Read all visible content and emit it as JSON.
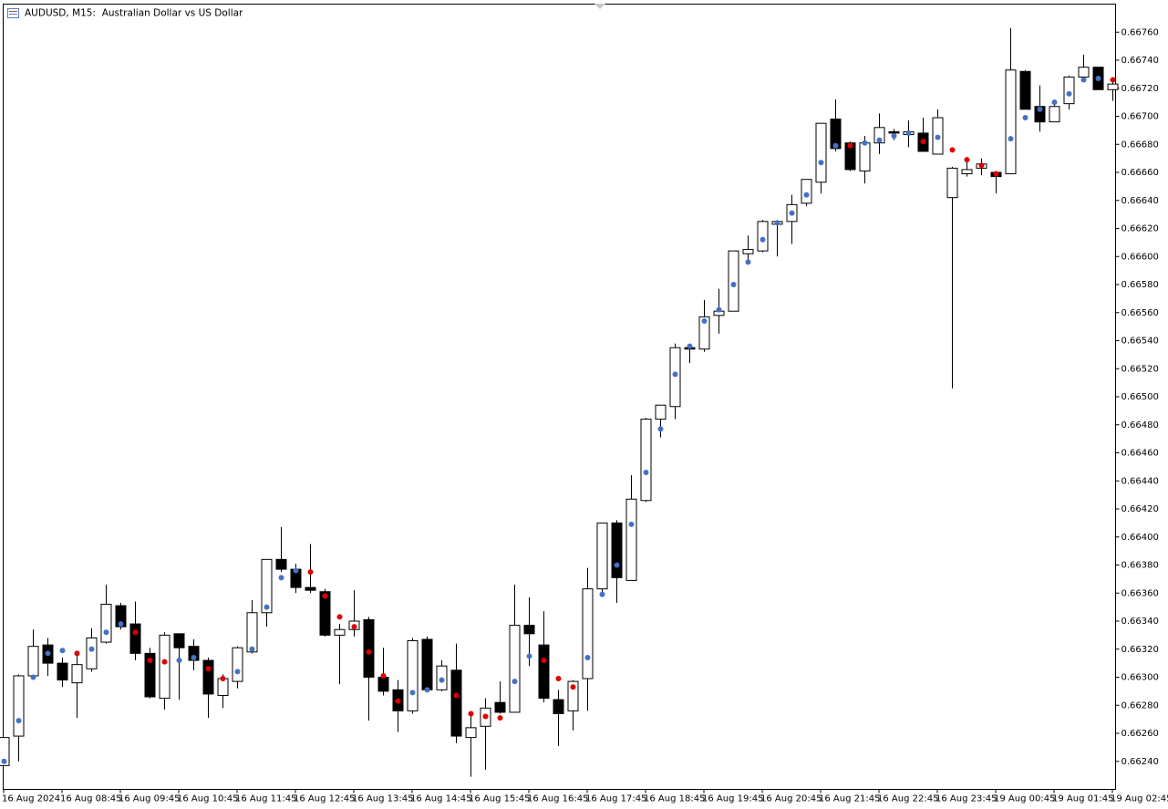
{
  "chart_data": {
    "type": "candlestick",
    "title": "AUDUSD, M15:  Australian Dollar vs US Dollar",
    "categories": [
      "16 Aug 2024",
      null,
      null,
      null,
      "16 Aug 08:45",
      null,
      null,
      null,
      "16 Aug 09:45",
      null,
      null,
      null,
      "16 Aug 10:45",
      null,
      null,
      null,
      "16 Aug 11:45",
      null,
      null,
      null,
      "16 Aug 12:45",
      null,
      null,
      null,
      "16 Aug 13:45",
      null,
      null,
      null,
      "16 Aug 14:45",
      null,
      null,
      null,
      "16 Aug 15:45",
      null,
      null,
      null,
      "16 Aug 16:45",
      null,
      null,
      null,
      "16 Aug 17:45",
      null,
      null,
      null,
      "16 Aug 18:45",
      null,
      null,
      null,
      "16 Aug 19:45",
      null,
      null,
      null,
      "16 Aug 20:45",
      null,
      null,
      null,
      "16 Aug 21:45",
      null,
      null,
      null,
      "16 Aug 22:45",
      null,
      null,
      null,
      "16 Aug 23:45",
      null,
      null,
      null,
      "19 Aug 00:45",
      null,
      null,
      null,
      "19 Aug 01:45",
      null,
      null,
      null,
      "19 Aug 02:45"
    ],
    "open": [
      0.66237,
      0.66258,
      0.66301,
      0.66323,
      0.6631,
      0.66296,
      0.66306,
      0.66325,
      0.66351,
      0.66338,
      0.66317,
      0.66285,
      0.66331,
      0.66322,
      0.66312,
      0.66287,
      0.66297,
      0.66318,
      0.66346,
      0.66384,
      0.66377,
      0.66364,
      0.66361,
      0.6633,
      0.66334,
      0.66341,
      0.663,
      0.66291,
      0.66276,
      0.66327,
      0.66291,
      0.66305,
      0.66257,
      0.66265,
      0.66282,
      0.66275,
      0.66337,
      0.66323,
      0.66284,
      0.66276,
      0.66299,
      0.66363,
      0.6641,
      0.66369,
      0.66426,
      0.66484,
      0.66493,
      0.66535,
      0.66534,
      0.66558,
      0.66561,
      0.66602,
      0.66604,
      0.66623,
      0.66625,
      0.66638,
      0.66653,
      0.66698,
      0.66681,
      0.66661,
      0.66681,
      0.66689,
      0.66687,
      0.66688,
      0.66673,
      0.66642,
      0.66659,
      0.66663,
      0.6666,
      0.66659,
      0.66732,
      0.66707,
      0.66696,
      0.66709,
      0.66728,
      0.66735,
      0.66719
    ],
    "high": [
      0.66257,
      0.66302,
      0.66334,
      0.66328,
      0.66314,
      0.66315,
      0.66335,
      0.66366,
      0.66353,
      0.66354,
      0.66321,
      0.66332,
      0.66331,
      0.66327,
      0.66314,
      0.66302,
      0.66322,
      0.66355,
      0.66384,
      0.66407,
      0.66381,
      0.66395,
      0.66363,
      0.66338,
      0.66362,
      0.66343,
      0.66321,
      0.66298,
      0.66328,
      0.66329,
      0.66312,
      0.66324,
      0.66273,
      0.66285,
      0.66297,
      0.66366,
      0.66357,
      0.66347,
      0.66291,
      0.66298,
      0.66378,
      0.6641,
      0.66412,
      0.66444,
      0.66485,
      0.66494,
      0.66538,
      0.66538,
      0.66569,
      0.66577,
      0.66604,
      0.66615,
      0.66626,
      0.66626,
      0.66644,
      0.66655,
      0.66695,
      0.66712,
      0.66682,
      0.66686,
      0.66702,
      0.66691,
      0.66697,
      0.66699,
      0.66705,
      0.66664,
      0.66669,
      0.6667,
      0.66661,
      0.66763,
      0.66733,
      0.66722,
      0.66712,
      0.66729,
      0.66744,
      0.66735,
      0.66727
    ],
    "low": [
      0.66237,
      0.6624,
      0.663,
      0.66301,
      0.66293,
      0.66271,
      0.66304,
      0.66324,
      0.66334,
      0.66312,
      0.66285,
      0.66277,
      0.66284,
      0.66305,
      0.66271,
      0.66278,
      0.66292,
      0.66317,
      0.66336,
      0.66375,
      0.6636,
      0.6636,
      0.66329,
      0.66295,
      0.66329,
      0.66269,
      0.66287,
      0.66261,
      0.66274,
      0.6629,
      0.6629,
      0.66253,
      0.66229,
      0.66234,
      0.66274,
      0.66275,
      0.66308,
      0.66282,
      0.66251,
      0.66262,
      0.66276,
      0.6636,
      0.66353,
      0.66369,
      0.66425,
      0.66471,
      0.66484,
      0.66524,
      0.66532,
      0.66545,
      0.66561,
      0.66595,
      0.66603,
      0.666,
      0.66609,
      0.66636,
      0.66645,
      0.66675,
      0.66661,
      0.66652,
      0.66673,
      0.66683,
      0.66678,
      0.66675,
      0.66673,
      0.66506,
      0.66657,
      0.66658,
      0.66645,
      0.66659,
      0.66705,
      0.66689,
      0.66696,
      0.66705,
      0.66728,
      0.66719,
      0.66711
    ],
    "close": [
      0.66257,
      0.66301,
      0.66322,
      0.6631,
      0.66298,
      0.66309,
      0.66328,
      0.66352,
      0.66336,
      0.66317,
      0.66286,
      0.6633,
      0.66321,
      0.66312,
      0.66288,
      0.66299,
      0.66321,
      0.66346,
      0.66384,
      0.66377,
      0.66364,
      0.66362,
      0.6633,
      0.66334,
      0.6634,
      0.663,
      0.6629,
      0.66276,
      0.66326,
      0.66291,
      0.66308,
      0.66258,
      0.66264,
      0.66278,
      0.66275,
      0.66337,
      0.66331,
      0.66285,
      0.66274,
      0.66297,
      0.66363,
      0.6641,
      0.66371,
      0.66427,
      0.66484,
      0.66494,
      0.66535,
      0.66534,
      0.66557,
      0.66561,
      0.66604,
      0.66605,
      0.66625,
      0.66625,
      0.66637,
      0.66655,
      0.66695,
      0.66677,
      0.66662,
      0.66681,
      0.66692,
      0.66688,
      0.66689,
      0.66675,
      0.66699,
      0.66663,
      0.66662,
      0.66666,
      0.66657,
      0.66733,
      0.66705,
      0.66696,
      0.66707,
      0.66728,
      0.66735,
      0.66719,
      0.66723
    ],
    "indicator": {
      "values": [
        0.6624,
        0.66269,
        0.663,
        0.66317,
        0.66319,
        0.66317,
        0.6632,
        0.66332,
        0.66338,
        0.66332,
        0.66312,
        0.66311,
        0.66312,
        0.66314,
        0.66306,
        0.66299,
        0.66304,
        0.6632,
        0.6635,
        0.66371,
        0.66376,
        0.66375,
        0.66358,
        0.66343,
        0.66336,
        0.66318,
        0.66301,
        0.66283,
        0.66289,
        0.66291,
        0.66298,
        0.66287,
        0.66274,
        0.66272,
        0.66271,
        0.66297,
        0.66315,
        0.66312,
        0.66299,
        0.66293,
        0.66314,
        0.66359,
        0.6638,
        0.66409,
        0.66446,
        0.66477,
        0.66516,
        0.66536,
        0.66554,
        0.66562,
        0.6658,
        0.66596,
        0.66612,
        0.66624,
        0.66631,
        0.66644,
        0.66667,
        0.66679,
        0.66679,
        0.66681,
        0.66683,
        0.66686,
        0.66688,
        0.66682,
        0.66685,
        0.66676,
        0.66669,
        0.66665,
        0.66659,
        0.66684,
        0.66699,
        0.66705,
        0.6671,
        0.66716,
        0.66726,
        0.66727,
        0.66726
      ],
      "colors": [
        "#4472c4",
        "#4472c4",
        "#4472c4",
        "#4472c4",
        "#4472c4",
        "#e00000",
        "#4472c4",
        "#4472c4",
        "#4472c4",
        "#e00000",
        "#e00000",
        "#e00000",
        "#4472c4",
        "#4472c4",
        "#e00000",
        "#e00000",
        "#4472c4",
        "#4472c4",
        "#4472c4",
        "#4472c4",
        "#4472c4",
        "#e00000",
        "#e00000",
        "#e00000",
        "#e00000",
        "#e00000",
        "#e00000",
        "#e00000",
        "#4472c4",
        "#4472c4",
        "#4472c4",
        "#e00000",
        "#e00000",
        "#e00000",
        "#e00000",
        "#4472c4",
        "#4472c4",
        "#e00000",
        "#e00000",
        "#e00000",
        "#4472c4",
        "#4472c4",
        "#4472c4",
        "#4472c4",
        "#4472c4",
        "#4472c4",
        "#4472c4",
        "#4472c4",
        "#4472c4",
        "#4472c4",
        "#4472c4",
        "#4472c4",
        "#4472c4",
        "#4472c4",
        "#4472c4",
        "#4472c4",
        "#4472c4",
        "#4472c4",
        "#e00000",
        "#4472c4",
        "#4472c4",
        "#4472c4",
        "#4472c4",
        "#e00000",
        "#4472c4",
        "#e00000",
        "#e00000",
        "#e00000",
        "#e00000",
        "#4472c4",
        "#4472c4",
        "#4472c4",
        "#4472c4",
        "#4472c4",
        "#4472c4",
        "#4472c4",
        "#e00000"
      ]
    },
    "bull_color": "#ffffff",
    "bear_color": "#000000",
    "ylim": [
      0.6622,
      0.6678
    ],
    "yticks": [
      {
        "value": 0.6624,
        "label": "0.66240"
      },
      {
        "value": 0.6626,
        "label": "0.66260"
      },
      {
        "value": 0.6628,
        "label": "0.66280"
      },
      {
        "value": 0.663,
        "label": "0.66300"
      },
      {
        "value": 0.6632,
        "label": "0.66320"
      },
      {
        "value": 0.6634,
        "label": "0.66340"
      },
      {
        "value": 0.6636,
        "label": "0.66360"
      },
      {
        "value": 0.6638,
        "label": "0.66380"
      },
      {
        "value": 0.664,
        "label": "0.66400"
      },
      {
        "value": 0.6642,
        "label": "0.66420"
      },
      {
        "value": 0.6644,
        "label": "0.66440"
      },
      {
        "value": 0.6646,
        "label": "0.66460"
      },
      {
        "value": 0.6648,
        "label": "0.66480"
      },
      {
        "value": 0.665,
        "label": "0.66500"
      },
      {
        "value": 0.6652,
        "label": "0.66520"
      },
      {
        "value": 0.6654,
        "label": "0.66540"
      },
      {
        "value": 0.6656,
        "label": "0.66560"
      },
      {
        "value": 0.6658,
        "label": "0.66580"
      },
      {
        "value": 0.666,
        "label": "0.66600"
      },
      {
        "value": 0.6662,
        "label": "0.66620"
      },
      {
        "value": 0.6664,
        "label": "0.66640"
      },
      {
        "value": 0.6666,
        "label": "0.66660"
      },
      {
        "value": 0.6668,
        "label": "0.66680"
      },
      {
        "value": 0.667,
        "label": "0.66700"
      },
      {
        "value": 0.6672,
        "label": "0.66720"
      },
      {
        "value": 0.6674,
        "label": "0.66740"
      },
      {
        "value": 0.6676,
        "label": "0.66760"
      }
    ],
    "grid": false
  }
}
